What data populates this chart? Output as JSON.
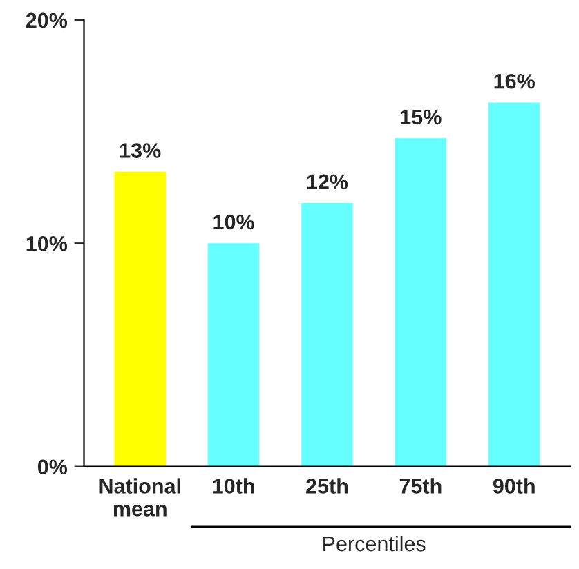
{
  "chart_data": {
    "type": "bar",
    "categories": [
      "National\nmean",
      "10th",
      "25th",
      "75th",
      "90th"
    ],
    "values": [
      13.2,
      10.0,
      11.8,
      14.7,
      16.3
    ],
    "colors": [
      "#ffff00",
      "#66ffff",
      "#66ffff",
      "#66ffff",
      "#66ffff"
    ],
    "value_labels": [
      "13%",
      "10%",
      "12%",
      "15%",
      "16%"
    ],
    "ylim": [
      0,
      20
    ],
    "yticks": [
      {
        "value": 0,
        "label": "0%"
      },
      {
        "value": 10,
        "label": "10%"
      },
      {
        "value": 20,
        "label": "20%"
      }
    ],
    "annotations": [
      "Percentiles"
    ],
    "grid": false,
    "legend": false
  }
}
